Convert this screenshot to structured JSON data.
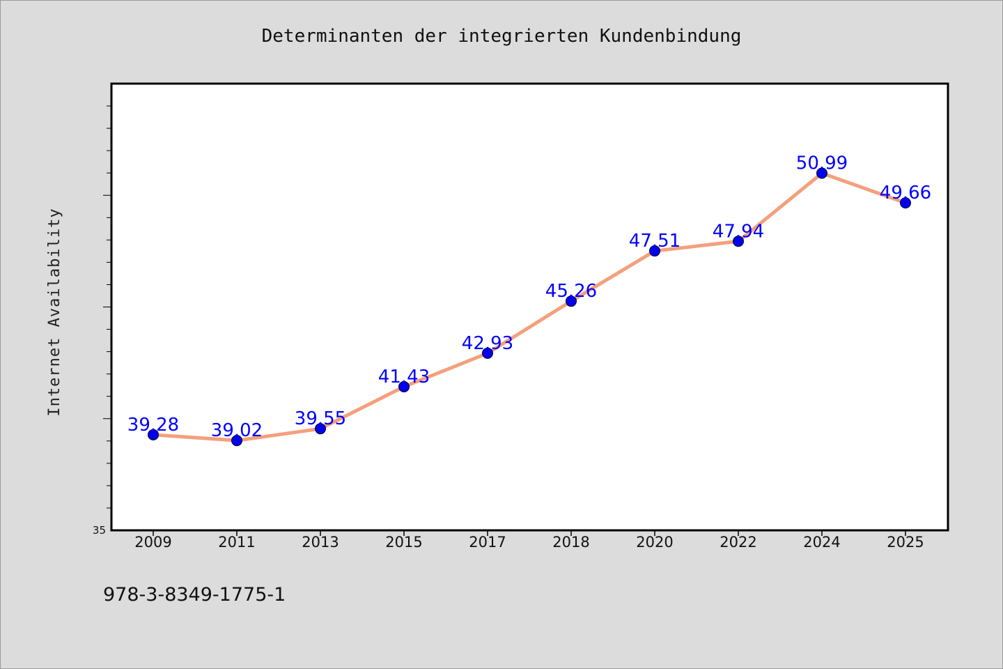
{
  "chart_data": {
    "type": "line",
    "title": "Determinanten der integrierten Kundenbindung",
    "xlabel": "",
    "ylabel": "Internet Availability",
    "categories": [
      "2009",
      "2011",
      "2013",
      "2015",
      "2017",
      "2018",
      "2020",
      "2022",
      "2024",
      "2025"
    ],
    "series": [
      {
        "values": [
          39.28,
          39.02,
          39.55,
          41.43,
          42.93,
          45.26,
          47.51,
          47.94,
          50.99,
          49.66
        ],
        "data_labels": [
          "39.28",
          "39.02",
          "39.55",
          "41.43",
          "42.93",
          "45.26",
          "47.51",
          "47.94",
          "50.99",
          "49.66"
        ]
      }
    ],
    "ylim": [
      35,
      55
    ],
    "ytick_labels": [
      "35"
    ],
    "grid": false,
    "legend": "none",
    "colors": {
      "line": "#f4a07c",
      "marker": "#0000ee",
      "label": "#0000ff",
      "background": "#dcdcdc",
      "plot_background": "#ffffff"
    }
  },
  "footer": {
    "isbn": "978-3-8349-1775-1"
  }
}
